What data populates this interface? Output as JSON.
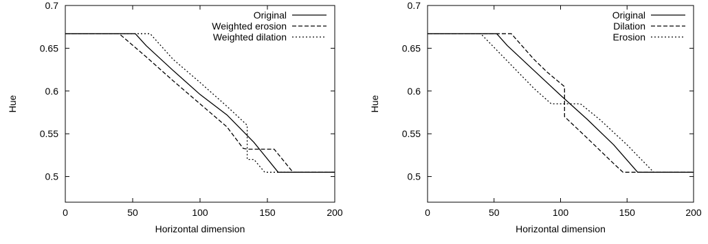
{
  "chart_data": [
    {
      "type": "line",
      "title": "",
      "xlabel": "Horizontal dimension",
      "ylabel": "Hue",
      "xlim": [
        0,
        200
      ],
      "ylim": [
        0.47,
        0.7
      ],
      "xticks": [
        0,
        50,
        100,
        150,
        200
      ],
      "yticks": [
        0.5,
        0.55,
        0.6,
        0.65,
        0.7
      ],
      "legend": "top-right",
      "grid": false,
      "series": [
        {
          "name": "Original",
          "style": "solid",
          "x": [
            0,
            52,
            60,
            80,
            100,
            120,
            140,
            158,
            200
          ],
          "y": [
            0.667,
            0.667,
            0.653,
            0.624,
            0.596,
            0.572,
            0.54,
            0.505,
            0.505
          ]
        },
        {
          "name": "Weighted erosion",
          "style": "dashed",
          "x": [
            0,
            40,
            60,
            80,
            100,
            120,
            132,
            135,
            155,
            169,
            200
          ],
          "y": [
            0.667,
            0.667,
            0.64,
            0.612,
            0.585,
            0.558,
            0.533,
            0.532,
            0.532,
            0.505,
            0.505
          ]
        },
        {
          "name": "Weighted dilation",
          "style": "dotted",
          "x": [
            0,
            63,
            80,
            100,
            120,
            135,
            135,
            140,
            148,
            200
          ],
          "y": [
            0.667,
            0.667,
            0.637,
            0.61,
            0.582,
            0.56,
            0.52,
            0.52,
            0.505,
            0.505
          ]
        }
      ]
    },
    {
      "type": "line",
      "title": "",
      "xlabel": "Horizontal dimension",
      "ylabel": "Hue",
      "xlim": [
        0,
        200
      ],
      "ylim": [
        0.47,
        0.7
      ],
      "xticks": [
        0,
        50,
        100,
        150,
        200
      ],
      "yticks": [
        0.5,
        0.55,
        0.6,
        0.65,
        0.7
      ],
      "legend": "top-right",
      "grid": false,
      "series": [
        {
          "name": "Original",
          "style": "solid",
          "x": [
            0,
            52,
            60,
            80,
            100,
            120,
            140,
            158,
            200
          ],
          "y": [
            0.667,
            0.667,
            0.653,
            0.624,
            0.595,
            0.567,
            0.537,
            0.505,
            0.505
          ]
        },
        {
          "name": "Dilation",
          "style": "dashed",
          "x": [
            0,
            63,
            80,
            90,
            103,
            103,
            120,
            140,
            147,
            200
          ],
          "y": [
            0.667,
            0.667,
            0.637,
            0.622,
            0.605,
            0.57,
            0.545,
            0.515,
            0.505,
            0.505
          ]
        },
        {
          "name": "Erosion",
          "style": "dotted",
          "x": [
            0,
            40,
            60,
            80,
            93,
            115,
            130,
            150,
            170,
            200
          ],
          "y": [
            0.667,
            0.667,
            0.635,
            0.603,
            0.585,
            0.585,
            0.566,
            0.537,
            0.505,
            0.505
          ]
        }
      ]
    }
  ]
}
